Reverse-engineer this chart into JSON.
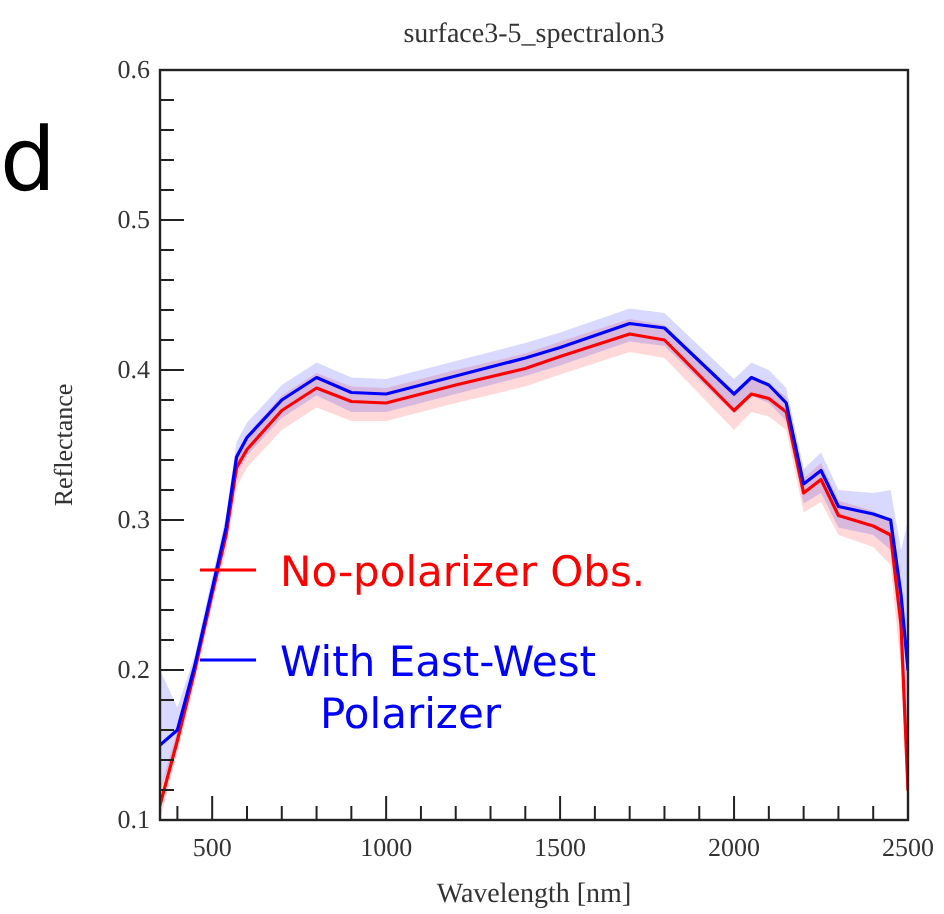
{
  "chart_data": {
    "type": "line",
    "title": "surface3-5_spectralon3",
    "xlabel": "Wavelength [nm]",
    "ylabel": "Reflectance",
    "annotations": [
      "d"
    ],
    "x": [
      350,
      400,
      450,
      500,
      540,
      570,
      600,
      700,
      800,
      900,
      1000,
      1200,
      1400,
      1500,
      1700,
      1800,
      2000,
      2050,
      2100,
      2150,
      2200,
      2250,
      2300,
      2400,
      2450,
      2480,
      2500
    ],
    "series": [
      {
        "name": "No-polarizer Obs.",
        "color": "#ff0000",
        "values": [
          0.11,
          0.153,
          0.2,
          0.251,
          0.29,
          0.335,
          0.347,
          0.373,
          0.388,
          0.379,
          0.378,
          0.39,
          0.401,
          0.409,
          0.424,
          0.42,
          0.373,
          0.384,
          0.381,
          0.372,
          0.318,
          0.327,
          0.303,
          0.296,
          0.29,
          0.23,
          0.12
        ],
        "lower": [
          0.1,
          0.145,
          0.192,
          0.243,
          0.28,
          0.322,
          0.335,
          0.36,
          0.375,
          0.366,
          0.366,
          0.378,
          0.389,
          0.397,
          0.412,
          0.408,
          0.36,
          0.372,
          0.369,
          0.36,
          0.305,
          0.312,
          0.29,
          0.282,
          0.27,
          0.2,
          0.1
        ],
        "upper": [
          0.12,
          0.16,
          0.207,
          0.258,
          0.298,
          0.345,
          0.357,
          0.383,
          0.398,
          0.389,
          0.388,
          0.4,
          0.411,
          0.419,
          0.434,
          0.43,
          0.383,
          0.394,
          0.391,
          0.382,
          0.328,
          0.338,
          0.313,
          0.306,
          0.3,
          0.25,
          0.14
        ]
      },
      {
        "name": "With East-West Polarizer",
        "color": "#0000ff",
        "values": [
          0.15,
          0.16,
          0.203,
          0.254,
          0.295,
          0.342,
          0.355,
          0.38,
          0.395,
          0.385,
          0.384,
          0.396,
          0.408,
          0.415,
          0.431,
          0.428,
          0.384,
          0.395,
          0.39,
          0.378,
          0.324,
          0.333,
          0.309,
          0.304,
          0.3,
          0.25,
          0.2
        ],
        "lower": [
          0.12,
          0.15,
          0.195,
          0.246,
          0.285,
          0.33,
          0.343,
          0.368,
          0.383,
          0.372,
          0.372,
          0.384,
          0.396,
          0.403,
          0.419,
          0.416,
          0.371,
          0.383,
          0.378,
          0.366,
          0.311,
          0.318,
          0.295,
          0.29,
          0.28,
          0.22,
          0.15
        ],
        "upper": [
          0.2,
          0.175,
          0.21,
          0.262,
          0.303,
          0.352,
          0.365,
          0.39,
          0.405,
          0.395,
          0.394,
          0.406,
          0.418,
          0.425,
          0.441,
          0.438,
          0.394,
          0.405,
          0.4,
          0.388,
          0.334,
          0.345,
          0.32,
          0.318,
          0.32,
          0.28,
          0.3
        ]
      }
    ],
    "xlim": [
      350,
      2500
    ],
    "xticks": [
      {
        "value": 400,
        "label": null
      },
      500,
      {
        "value": 600,
        "label": null
      },
      {
        "value": 700,
        "label": null
      },
      {
        "value": 800,
        "label": null
      },
      {
        "value": 900,
        "label": null
      },
      1000,
      {
        "value": 1100,
        "label": null
      },
      {
        "value": 1200,
        "label": null
      },
      {
        "value": 1300,
        "label": null
      },
      {
        "value": 1400,
        "label": null
      },
      1500,
      {
        "value": 1600,
        "label": null
      },
      {
        "value": 1700,
        "label": null
      },
      {
        "value": 1800,
        "label": null
      },
      {
        "value": 1900,
        "label": null
      },
      2000,
      {
        "value": 2100,
        "label": null
      },
      {
        "value": 2200,
        "label": null
      },
      {
        "value": 2300,
        "label": null
      },
      {
        "value": 2400,
        "label": null
      },
      2500
    ],
    "ylim": [
      0.1,
      0.6
    ],
    "yticks": [
      0.1,
      {
        "value": 0.12,
        "label": null
      },
      {
        "value": 0.14,
        "label": null
      },
      {
        "value": 0.16,
        "label": null
      },
      {
        "value": 0.18,
        "label": null
      },
      0.2,
      {
        "value": 0.22,
        "label": null
      },
      {
        "value": 0.24,
        "label": null
      },
      {
        "value": 0.26,
        "label": null
      },
      {
        "value": 0.28,
        "label": null
      },
      0.3,
      {
        "value": 0.32,
        "label": null
      },
      {
        "value": 0.34,
        "label": null
      },
      {
        "value": 0.36,
        "label": null
      },
      {
        "value": 0.38,
        "label": null
      },
      0.4,
      {
        "value": 0.42,
        "label": null
      },
      {
        "value": 0.44,
        "label": null
      },
      {
        "value": 0.46,
        "label": null
      },
      {
        "value": 0.48,
        "label": null
      },
      0.5,
      {
        "value": 0.52,
        "label": null
      },
      {
        "value": 0.54,
        "label": null
      },
      {
        "value": 0.56,
        "label": null
      },
      {
        "value": 0.58,
        "label": null
      },
      0.6
    ],
    "grid": false,
    "legend": "bottom left",
    "line_style": "solid",
    "marker": "none"
  }
}
